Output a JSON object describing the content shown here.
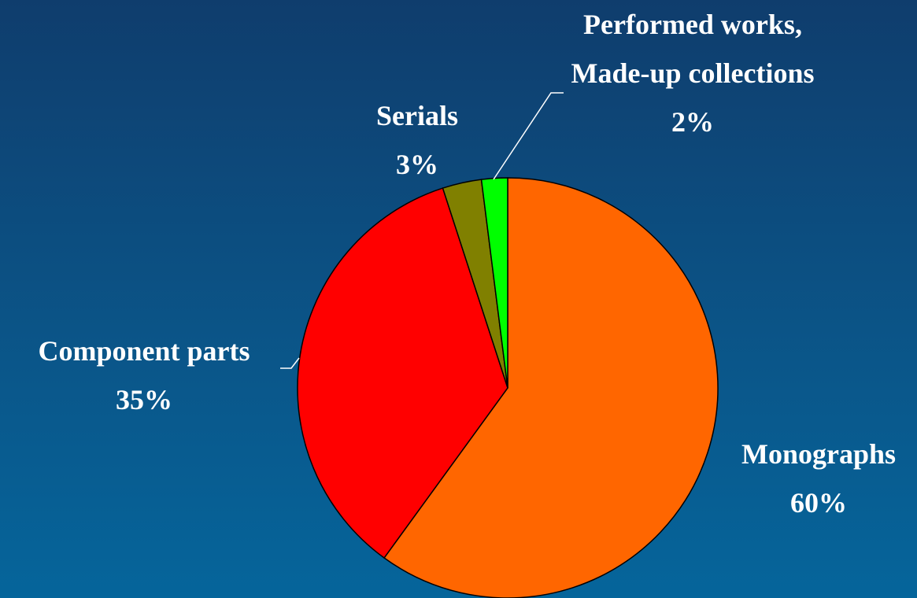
{
  "chart_data": {
    "type": "pie",
    "categories": [
      "Monographs",
      "Component parts",
      "Serials",
      "Performed works, Made-up collections"
    ],
    "values": [
      60,
      35,
      3,
      2
    ],
    "value_labels": [
      "60%",
      "35%",
      "3%",
      "2%"
    ],
    "colors": [
      "#ff6600",
      "#ff0000",
      "#808000",
      "#00ff00"
    ]
  }
}
